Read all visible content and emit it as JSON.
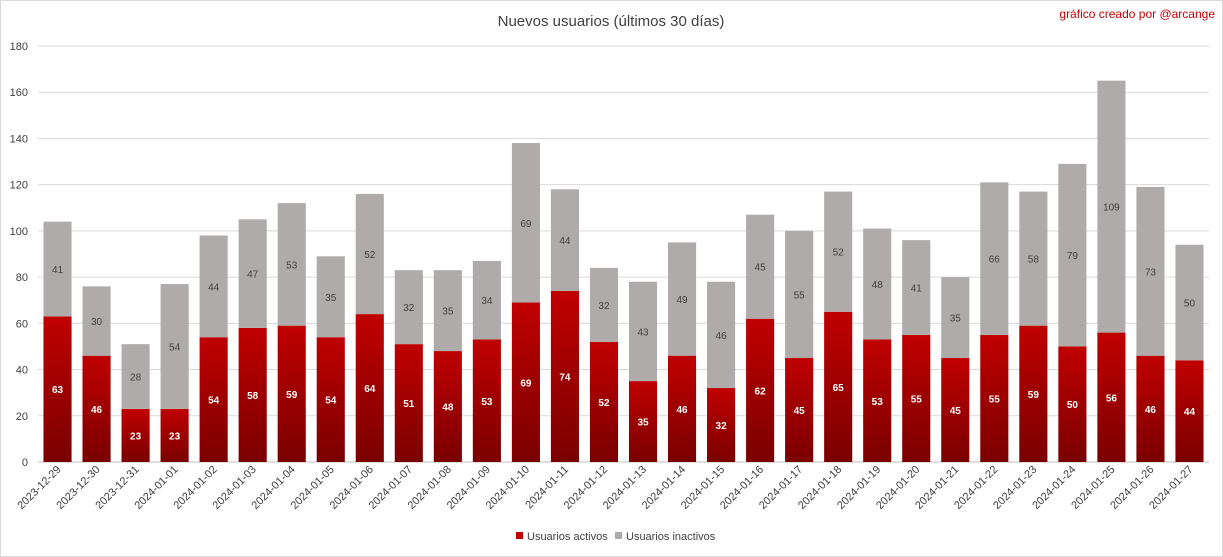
{
  "chart_data": {
    "type": "bar",
    "stacked": true,
    "title": "Nuevos usuarios (últimos 30 días)",
    "credit": "gráfico creado por @arcange",
    "ylim": [
      0,
      180
    ],
    "yticks": [
      0,
      20,
      40,
      60,
      80,
      100,
      120,
      140,
      160,
      180
    ],
    "grid": true,
    "legend_position": "bottom",
    "categories": [
      "2023-12-29",
      "2023-12-30",
      "2023-12-31",
      "2024-01-01",
      "2024-01-02",
      "2024-01-03",
      "2024-01-04",
      "2024-01-05",
      "2024-01-06",
      "2024-01-07",
      "2024-01-08",
      "2024-01-09",
      "2024-01-10",
      "2024-01-11",
      "2024-01-12",
      "2024-01-13",
      "2024-01-14",
      "2024-01-15",
      "2024-01-16",
      "2024-01-17",
      "2024-01-18",
      "2024-01-19",
      "2024-01-20",
      "2024-01-21",
      "2024-01-22",
      "2024-01-23",
      "2024-01-24",
      "2024-01-25",
      "2024-01-26",
      "2024-01-27"
    ],
    "series": [
      {
        "name": "Usuarios activos",
        "color": "#c00000",
        "color_dark": "#7a0000",
        "values": [
          63,
          46,
          23,
          23,
          54,
          58,
          59,
          54,
          64,
          51,
          48,
          53,
          69,
          74,
          52,
          35,
          46,
          32,
          62,
          45,
          65,
          53,
          55,
          45,
          55,
          59,
          50,
          56,
          46,
          44
        ]
      },
      {
        "name": "Usuarios inactivos",
        "color": "#afabab",
        "values": [
          41,
          30,
          28,
          54,
          44,
          47,
          53,
          35,
          52,
          32,
          35,
          34,
          69,
          44,
          32,
          43,
          49,
          46,
          45,
          55,
          52,
          48,
          41,
          35,
          66,
          58,
          79,
          109,
          73,
          50
        ]
      }
    ]
  }
}
